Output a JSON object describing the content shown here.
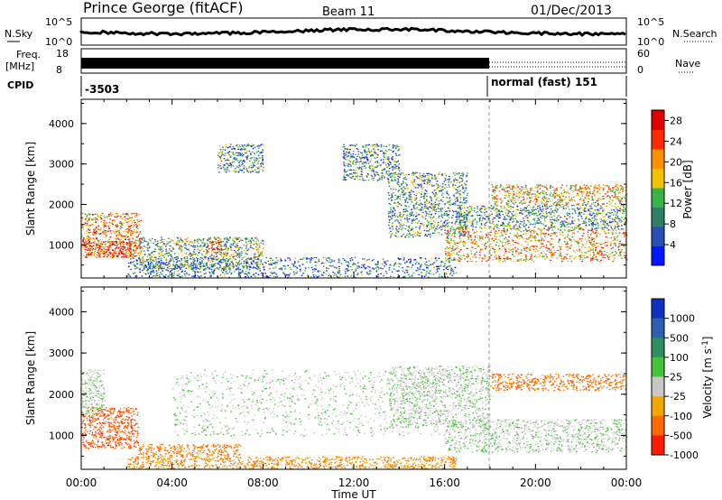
{
  "header": {
    "station": "Prince George (fitACF)",
    "beam": "Beam 11",
    "date": "01/Dec/2013"
  },
  "status_panels": {
    "nsky_label": "N.Sky",
    "nsky_ticks": [
      "10^5",
      "10^0"
    ],
    "nsearch_label": "N.Search",
    "nsearch_ticks": [
      "10^5",
      "10^0"
    ],
    "freq_label": "Freq.",
    "freq_unit": "[MHz]",
    "freq_ticks": [
      "18",
      "8"
    ],
    "nave_label": "Nave",
    "nave_ticks": [
      "60",
      "0"
    ],
    "cpid_label": "CPID",
    "cpid_entries": [
      "-3503",
      "normal (fast) 151"
    ]
  },
  "chart_data": [
    {
      "type": "heatmap",
      "panel": "power",
      "ylabel": "Slant Range [km]",
      "ylim": [
        180,
        4600
      ],
      "yticks": [
        "1000",
        "2000",
        "3000",
        "4000"
      ],
      "xlim": [
        0,
        24
      ],
      "colorbar": {
        "label": "Power [dB]",
        "ticks": [
          "4",
          "8",
          "12",
          "16",
          "20",
          "24",
          "28"
        ],
        "range": [
          0,
          30
        ],
        "colors": [
          "#0018ff",
          "#2a4fb4",
          "#2e7f66",
          "#39b24a",
          "#f2c100",
          "#ff9000",
          "#ff2a00",
          "#e00000"
        ]
      },
      "regions": [
        {
          "t": [
            0.0,
            2.6
          ],
          "r": [
            700,
            1800
          ],
          "level": 0.7
        },
        {
          "t": [
            0.1,
            2.4
          ],
          "r": [
            700,
            1100
          ],
          "level": 0.9
        },
        {
          "t": [
            2.5,
            8.0
          ],
          "r": [
            400,
            1200
          ],
          "level": 0.4
        },
        {
          "t": [
            5.5,
            6.2
          ],
          "r": [
            800,
            1100
          ],
          "level": 0.85
        },
        {
          "t": [
            2.0,
            16.5
          ],
          "r": [
            200,
            700
          ],
          "level": 0.25
        },
        {
          "t": [
            6.0,
            8.0
          ],
          "r": [
            2800,
            3500
          ],
          "level": 0.3
        },
        {
          "t": [
            11.5,
            14.0
          ],
          "r": [
            2600,
            3500
          ],
          "level": 0.3
        },
        {
          "t": [
            13.5,
            17.0
          ],
          "r": [
            1200,
            2800
          ],
          "level": 0.35
        },
        {
          "t": [
            16.0,
            24.0
          ],
          "r": [
            600,
            1400
          ],
          "level": 0.65
        },
        {
          "t": [
            18.0,
            24.0
          ],
          "r": [
            2000,
            2500
          ],
          "level": 0.6
        },
        {
          "t": [
            16.5,
            24.0
          ],
          "r": [
            1400,
            2000
          ],
          "level": 0.35
        }
      ]
    },
    {
      "type": "heatmap",
      "panel": "velocity",
      "ylabel": "Slant Range [km]",
      "ylim": [
        180,
        4600
      ],
      "yticks": [
        "1000",
        "2000",
        "3000",
        "4000"
      ],
      "xlim": [
        0,
        24
      ],
      "xticks": [
        "00:00",
        "04:00",
        "08:00",
        "12:00",
        "16:00",
        "20:00",
        "00:00"
      ],
      "xlabel": "Time UT",
      "colorbar": {
        "label": "Velocity [m s^-1]",
        "ticks": [
          "1000",
          "500",
          "100",
          "25",
          "-25",
          "-100",
          "-500",
          "-1000"
        ],
        "colors": [
          "#1030c0",
          "#2f5fb0",
          "#2f8f5f",
          "#46c43c",
          "#c8c8c4",
          "#f2a800",
          "#ff6a00",
          "#ff1a00"
        ]
      },
      "regions": [
        {
          "t": [
            0.0,
            2.5
          ],
          "r": [
            700,
            1700
          ],
          "v": -400
        },
        {
          "t": [
            0.0,
            1.0
          ],
          "r": [
            1500,
            2600
          ],
          "v": 0
        },
        {
          "t": [
            2.5,
            7.0
          ],
          "r": [
            500,
            800
          ],
          "v": -150
        },
        {
          "t": [
            2.0,
            16.5
          ],
          "r": [
            200,
            500
          ],
          "v": -100
        },
        {
          "t": [
            4.0,
            16.0
          ],
          "r": [
            1000,
            2600
          ],
          "v": 0
        },
        {
          "t": [
            13.5,
            18.0
          ],
          "r": [
            1200,
            2700
          ],
          "v": 0
        },
        {
          "t": [
            16.0,
            24.0
          ],
          "r": [
            600,
            1400
          ],
          "v": 0
        },
        {
          "t": [
            18.0,
            24.0
          ],
          "r": [
            2100,
            2500
          ],
          "v": -200
        }
      ]
    }
  ]
}
